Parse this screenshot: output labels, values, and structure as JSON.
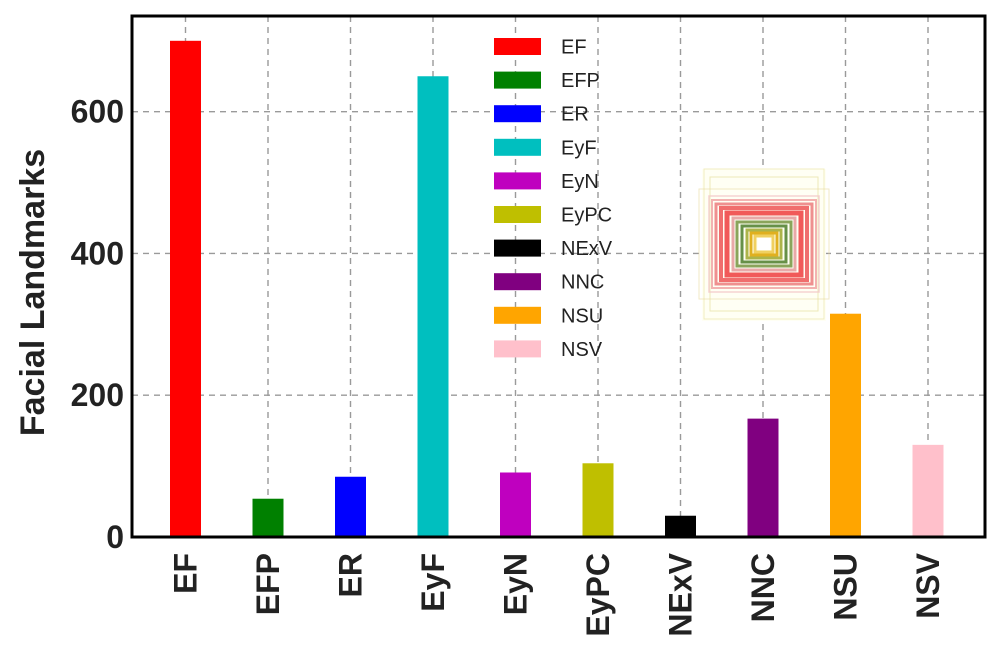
{
  "chart_data": {
    "type": "bar",
    "categories": [
      "EF",
      "EFP",
      "ER",
      "EyF",
      "EyN",
      "EyPC",
      "NExV",
      "NNC",
      "NSU",
      "NSV"
    ],
    "values": [
      700,
      54,
      85,
      650,
      91,
      104,
      30,
      167,
      315,
      130
    ],
    "colors": [
      "#ff0000",
      "#008000",
      "#0000ff",
      "#00bfbf",
      "#bf00bf",
      "#bfbf00",
      "#000000",
      "#800080",
      "#ffa500",
      "#ffc0cb"
    ],
    "ylabel": "Facial Landmarks",
    "xlabel": "",
    "ylim": [
      0,
      735
    ],
    "yticks": [
      0,
      200,
      400,
      600
    ],
    "grid": true,
    "legend_placement": "top-center",
    "inset_image": "nested-bounding-boxes-thumbnail"
  }
}
